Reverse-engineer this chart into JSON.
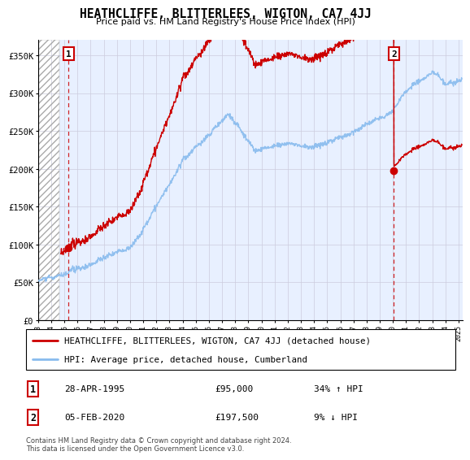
{
  "title": "HEATHCLIFFE, BLITTERLEES, WIGTON, CA7 4JJ",
  "subtitle": "Price paid vs. HM Land Registry's House Price Index (HPI)",
  "ylabel_ticks": [
    "£0",
    "£50K",
    "£100K",
    "£150K",
    "£200K",
    "£250K",
    "£300K",
    "£350K"
  ],
  "ylim": [
    0,
    370000
  ],
  "yticks": [
    0,
    50000,
    100000,
    150000,
    200000,
    250000,
    300000,
    350000
  ],
  "sale1_x": 1995.33,
  "sale1_y": 95000,
  "sale2_x": 2020.08,
  "sale2_y": 197500,
  "legend_line1": "HEATHCLIFFE, BLITTERLEES, WIGTON, CA7 4JJ (detached house)",
  "legend_line2": "HPI: Average price, detached house, Cumberland",
  "sale1_display": "28-APR-1995",
  "sale1_price": "£95,000",
  "sale1_pct": "34% ↑ HPI",
  "sale2_display": "05-FEB-2020",
  "sale2_price": "£197,500",
  "sale2_pct": "9% ↓ HPI",
  "footer": "Contains HM Land Registry data © Crown copyright and database right 2024.\nThis data is licensed under the Open Government Licence v3.0.",
  "sale_color": "#cc0000",
  "hpi_color": "#88bbee",
  "bg_plot": "#e8f0ff",
  "xlim_start": 1993.0,
  "xlim_end": 2025.3,
  "hatch_end": 1994.6
}
